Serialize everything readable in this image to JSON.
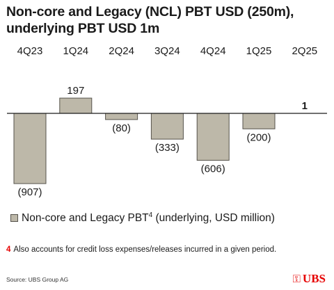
{
  "title_lines": [
    "Non-core and Legacy (NCL) PBT USD (250m),",
    "underlying PBT USD 1m"
  ],
  "chart_data": {
    "type": "bar",
    "categories": [
      "4Q23",
      "1Q24",
      "2Q24",
      "3Q24",
      "4Q24",
      "1Q25",
      "2Q25"
    ],
    "values": [
      -907,
      197,
      -80,
      -333,
      -606,
      -200,
      1
    ],
    "data_labels": [
      "(907)",
      "197",
      "(80)",
      "(333)",
      "(606)",
      "(200)",
      "1"
    ],
    "bold_labels": [
      false,
      false,
      false,
      false,
      false,
      false,
      true
    ],
    "series": [
      {
        "name": "Non-core and Legacy PBT⁴ (underlying, USD million)",
        "values": [
          -907,
          197,
          -80,
          -333,
          -606,
          -200,
          1
        ]
      }
    ],
    "legend_placement": "bottom-left",
    "ylim": [
      -907,
      197
    ],
    "grid": false,
    "colors": {
      "bar": "#bdb8a9",
      "bar_border": "#55524b",
      "axis": "#1a1a1a"
    }
  },
  "legend": {
    "text": "Non-core and Legacy PBT",
    "sup": "4",
    "suffix": " (underlying, USD million)"
  },
  "footnote": {
    "number": "4",
    "text": "Also accounts for credit loss expenses/releases incurred in a given period."
  },
  "source": "Source: UBS Group AG",
  "logo": {
    "text": "UBS",
    "accent": "#e60000",
    "icon": "ubs-keys-icon"
  }
}
